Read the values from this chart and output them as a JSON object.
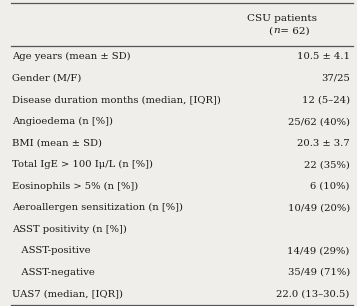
{
  "title_col_line1": "CSU patients",
  "title_col_line2": "(n = 62)",
  "rows": [
    {
      "label": "Age years (mean ± SD)",
      "value": "10.5 ± 4.1",
      "indent": false
    },
    {
      "label": "Gender (M/F)",
      "value": "37/25",
      "indent": false
    },
    {
      "label": "Disease duration months (median, [IQR])",
      "value": "12 (5–24)",
      "indent": false
    },
    {
      "label": "Angioedema (n [%])",
      "value": "25/62 (40%)",
      "indent": false
    },
    {
      "label": "BMI (mean ± SD)",
      "value": "20.3 ± 3.7",
      "indent": false
    },
    {
      "label": "Total IgE > 100 Iμ/L (n [%])",
      "value": "22 (35%)",
      "indent": false
    },
    {
      "label": "Eosinophils > 5% (n [%])",
      "value": "6 (10%)",
      "indent": false
    },
    {
      "label": "Aeroallergen sensitization (n [%])",
      "value": "10/49 (20%)",
      "indent": false
    },
    {
      "label": "ASST positivity (n [%])",
      "value": "",
      "indent": false
    },
    {
      "label": "   ASST-positive",
      "value": "14/49 (29%)",
      "indent": false
    },
    {
      "label": "   ASST-negative",
      "value": "35/49 (71%)",
      "indent": false
    },
    {
      "label": "UAS7 (median, [IQR])",
      "value": "22.0 (13–30.5)",
      "indent": false
    }
  ],
  "bg_color": "#f0eeeb",
  "text_color": "#1a1a1a",
  "line_color": "#555555",
  "font_size": 7.2,
  "header_font_size": 7.5,
  "fig_width": 3.57,
  "fig_height": 3.06,
  "dpi": 100
}
